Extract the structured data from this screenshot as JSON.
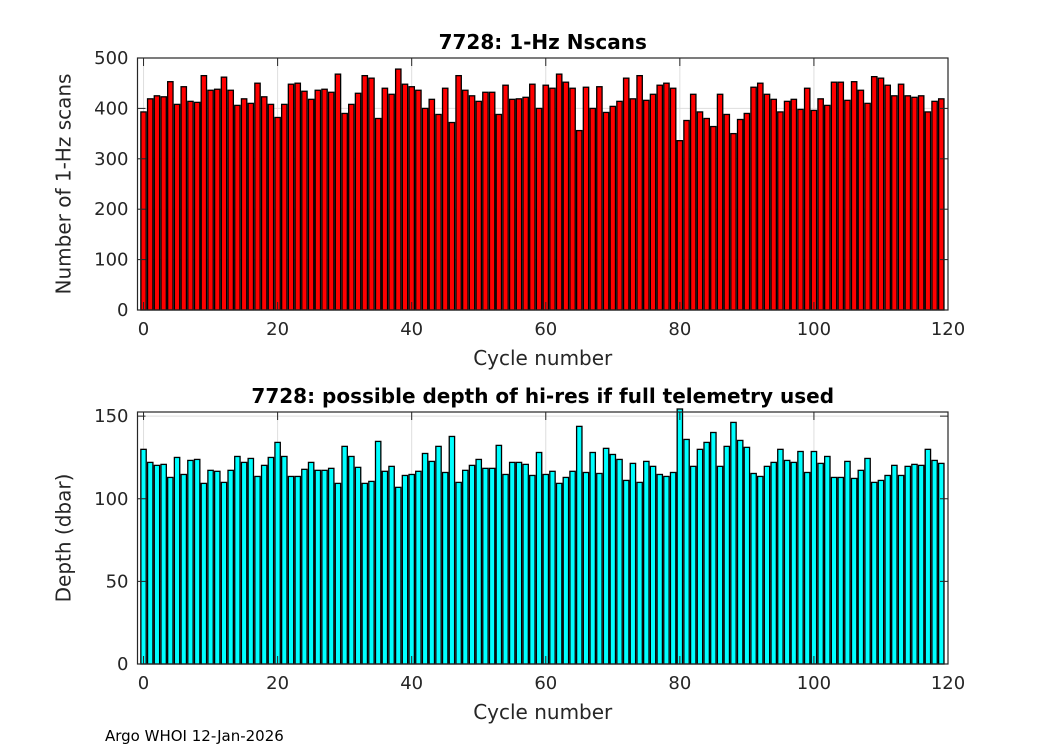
{
  "footer": "Argo WHOI 12-Jan-2026",
  "chart_data": [
    {
      "type": "bar",
      "title": "7728: 1-Hz Nscans",
      "xlabel": "Cycle number",
      "ylabel": "Number of 1-Hz scans",
      "xlim": [
        -0.9,
        120
      ],
      "ylim": [
        0,
        500
      ],
      "xticks": [
        0,
        20,
        40,
        60,
        80,
        100,
        120
      ],
      "yticks": [
        0,
        100,
        200,
        300,
        400,
        500
      ],
      "grid": true,
      "color": "#ff0000",
      "x_start": 0,
      "values": [
        393,
        419,
        425,
        423,
        453,
        408,
        443,
        414,
        412,
        465,
        436,
        438,
        462,
        436,
        406,
        419,
        410,
        450,
        423,
        408,
        382,
        408,
        448,
        450,
        434,
        418,
        436,
        438,
        432,
        468,
        390,
        408,
        430,
        465,
        460,
        380,
        440,
        428,
        478,
        448,
        443,
        436,
        400,
        418,
        388,
        440,
        372,
        465,
        436,
        425,
        414,
        432,
        432,
        388,
        446,
        418,
        419,
        422,
        448,
        400,
        446,
        440,
        468,
        452,
        440,
        356,
        442,
        400,
        443,
        392,
        404,
        414,
        460,
        419,
        465,
        416,
        428,
        446,
        450,
        440,
        336,
        376,
        428,
        393,
        380,
        364,
        428,
        388,
        350,
        378,
        390,
        442,
        450,
        428,
        418,
        393,
        414,
        418,
        398,
        440,
        396,
        419,
        406,
        452,
        452,
        416,
        453,
        436,
        410,
        463,
        460,
        446,
        425,
        448,
        425,
        422,
        425,
        393,
        414,
        419
      ]
    },
    {
      "type": "bar",
      "title": "7728: possible depth of hi-res if full telemetry used",
      "xlabel": "Cycle number",
      "ylabel": "Depth (dbar)",
      "xlim": [
        -0.9,
        120
      ],
      "ylim": [
        0,
        152.5
      ],
      "xticks": [
        0,
        20,
        40,
        60,
        80,
        100,
        120
      ],
      "yticks": [
        0,
        50,
        100,
        150
      ],
      "grid": true,
      "color": "#00ffff",
      "x_start": 0,
      "values": [
        129.9,
        122.0,
        120.2,
        120.8,
        112.9,
        125.0,
        114.7,
        123.2,
        123.8,
        109.3,
        117.2,
        116.6,
        109.9,
        117.2,
        125.6,
        122.0,
        124.4,
        113.5,
        120.2,
        125.0,
        134.1,
        125.6,
        113.5,
        113.5,
        117.8,
        122.0,
        117.2,
        117.2,
        118.4,
        109.3,
        131.7,
        125.6,
        119.0,
        109.3,
        110.5,
        134.7,
        116.6,
        119.6,
        106.9,
        114.1,
        114.7,
        116.6,
        127.4,
        122.6,
        131.7,
        115.9,
        137.7,
        109.9,
        117.2,
        120.2,
        123.8,
        118.4,
        118.4,
        132.3,
        114.7,
        122.0,
        122.0,
        120.8,
        114.1,
        128.0,
        114.7,
        116.6,
        109.3,
        112.9,
        116.6,
        143.8,
        115.9,
        128.0,
        115.3,
        130.5,
        126.8,
        123.8,
        111.1,
        121.4,
        109.9,
        122.6,
        119.6,
        114.7,
        113.5,
        115.9,
        155.0,
        135.9,
        119.6,
        129.9,
        134.1,
        140.1,
        119.6,
        131.7,
        146.2,
        135.3,
        131.1,
        115.3,
        113.5,
        119.6,
        122.0,
        129.9,
        123.2,
        122.0,
        128.6,
        115.9,
        128.6,
        121.4,
        125.6,
        112.9,
        112.9,
        122.6,
        112.3,
        117.2,
        124.4,
        109.9,
        111.1,
        114.1,
        120.2,
        114.1,
        119.6,
        120.8,
        120.2,
        129.9,
        123.2,
        121.4
      ]
    }
  ]
}
